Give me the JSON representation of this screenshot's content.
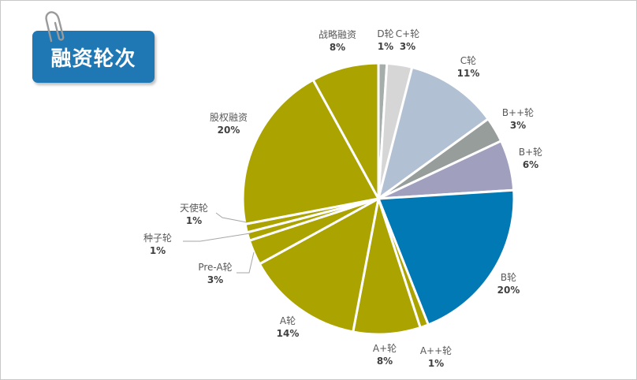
{
  "title": "融资轮次",
  "colors": {
    "olive": "#aba300",
    "blue": "#0079b5",
    "lavender": "#a09fbe",
    "gray": "#969d9b",
    "lightblue": "#b1c1d3",
    "lightgray": "#d6d6d6",
    "midgray": "#a6aeab",
    "badge": "#1f77b4"
  },
  "chart_data": {
    "type": "pie",
    "slices": [
      {
        "name": "D轮",
        "percent_label": "1%",
        "value": 1,
        "color": "#a6aeab"
      },
      {
        "name": "C+轮",
        "percent_label": "3%",
        "value": 3,
        "color": "#d6d6d6"
      },
      {
        "name": "C轮",
        "percent_label": "11%",
        "value": 11,
        "color": "#b1c1d3"
      },
      {
        "name": "B++轮",
        "percent_label": "3%",
        "value": 3,
        "color": "#969d9b"
      },
      {
        "name": "B+轮",
        "percent_label": "6%",
        "value": 6,
        "color": "#a09fbe"
      },
      {
        "name": "B轮",
        "percent_label": "20%",
        "value": 20,
        "color": "#0079b5"
      },
      {
        "name": "A++轮",
        "percent_label": "1%",
        "value": 1,
        "color": "#aba300"
      },
      {
        "name": "A+轮",
        "percent_label": "8%",
        "value": 8,
        "color": "#aba300"
      },
      {
        "name": "A轮",
        "percent_label": "14%",
        "value": 14,
        "color": "#aba300"
      },
      {
        "name": "Pre-A轮",
        "percent_label": "3%",
        "value": 3,
        "color": "#aba300"
      },
      {
        "name": "种子轮",
        "percent_label": "1%",
        "value": 1,
        "color": "#aba300"
      },
      {
        "name": "天使轮",
        "percent_label": "1%",
        "value": 1,
        "color": "#aba300"
      },
      {
        "name": "股权融资",
        "percent_label": "20%",
        "value": 20,
        "color": "#aba300"
      },
      {
        "name": "战略融资",
        "percent_label": "8%",
        "value": 8,
        "color": "#aba300"
      }
    ]
  }
}
